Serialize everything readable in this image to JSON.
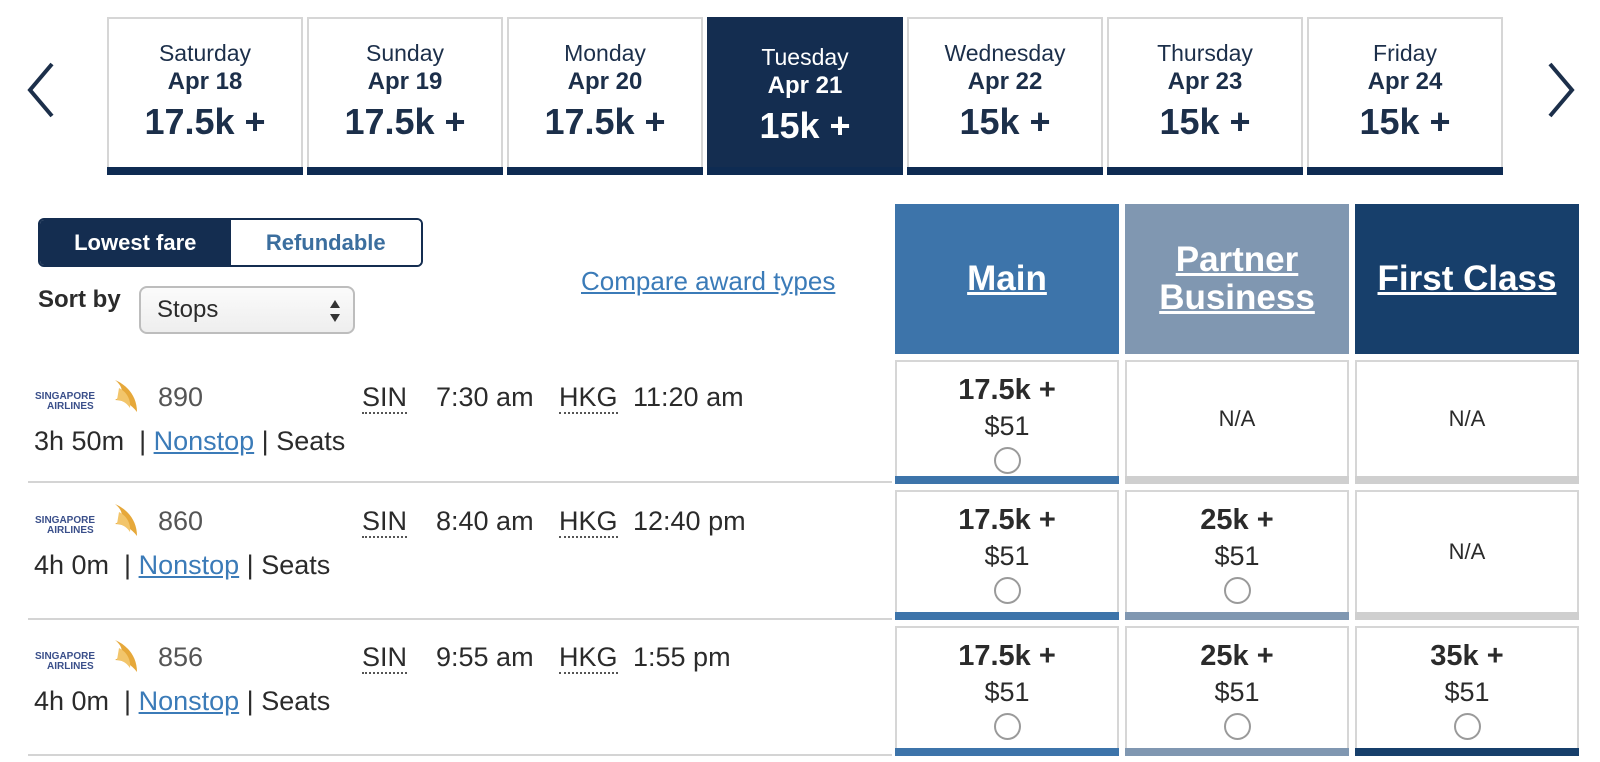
{
  "nav": {
    "prev_icon": "chevron-left-icon",
    "next_icon": "chevron-right-icon"
  },
  "dates": [
    {
      "day": "Saturday",
      "date": "Apr 18",
      "price": "17.5k +",
      "selected": false
    },
    {
      "day": "Sunday",
      "date": "Apr 19",
      "price": "17.5k +",
      "selected": false
    },
    {
      "day": "Monday",
      "date": "Apr 20",
      "price": "17.5k +",
      "selected": false
    },
    {
      "day": "Tuesday",
      "date": "Apr 21",
      "price": "15k +",
      "selected": true
    },
    {
      "day": "Wednesday",
      "date": "Apr 22",
      "price": "15k +",
      "selected": false
    },
    {
      "day": "Thursday",
      "date": "Apr 23",
      "price": "15k +",
      "selected": false
    },
    {
      "day": "Friday",
      "date": "Apr 24",
      "price": "15k +",
      "selected": false
    }
  ],
  "fare_toggle": {
    "lowest": "Lowest fare",
    "refundable": "Refundable",
    "active": "lowest"
  },
  "sort": {
    "label": "Sort by",
    "value": "Stops"
  },
  "compare_link": "Compare award types",
  "cabins": {
    "main": "Main",
    "partner_line1": "Partner",
    "partner_line2": "Business",
    "first": "First Class"
  },
  "colors": {
    "navy": "#142d50",
    "main": "#3d74aa",
    "partner": "#8097b1",
    "first": "#173f6b",
    "link": "#3b7bb8"
  },
  "flights": [
    {
      "airline": "SINGAPORE AIRLINES",
      "logo_text_1": "SINGAPORE",
      "logo_text_2": "AIRLINES",
      "number": "890",
      "origin": "SIN",
      "depart": "7:30 am",
      "destination": "HKG",
      "arrive": "11:20 am",
      "duration": "3h 50m",
      "stops": "Nonstop",
      "seats": "Seats",
      "fares": {
        "main": {
          "points": "17.5k +",
          "tax": "$51"
        },
        "partner": {
          "na": "N/A"
        },
        "first": {
          "na": "N/A"
        }
      }
    },
    {
      "airline": "SINGAPORE AIRLINES",
      "logo_text_1": "SINGAPORE",
      "logo_text_2": "AIRLINES",
      "number": "860",
      "origin": "SIN",
      "depart": "8:40 am",
      "destination": "HKG",
      "arrive": "12:40 pm",
      "duration": "4h 0m",
      "stops": "Nonstop",
      "seats": "Seats",
      "fares": {
        "main": {
          "points": "17.5k +",
          "tax": "$51"
        },
        "partner": {
          "points": "25k +",
          "tax": "$51"
        },
        "first": {
          "na": "N/A"
        }
      }
    },
    {
      "airline": "SINGAPORE AIRLINES",
      "logo_text_1": "SINGAPORE",
      "logo_text_2": "AIRLINES",
      "number": "856",
      "origin": "SIN",
      "depart": "9:55 am",
      "destination": "HKG",
      "arrive": "1:55 pm",
      "duration": "4h 0m",
      "stops": "Nonstop",
      "seats": "Seats",
      "fares": {
        "main": {
          "points": "17.5k +",
          "tax": "$51"
        },
        "partner": {
          "points": "25k +",
          "tax": "$51"
        },
        "first": {
          "points": "35k +",
          "tax": "$51"
        }
      }
    }
  ]
}
